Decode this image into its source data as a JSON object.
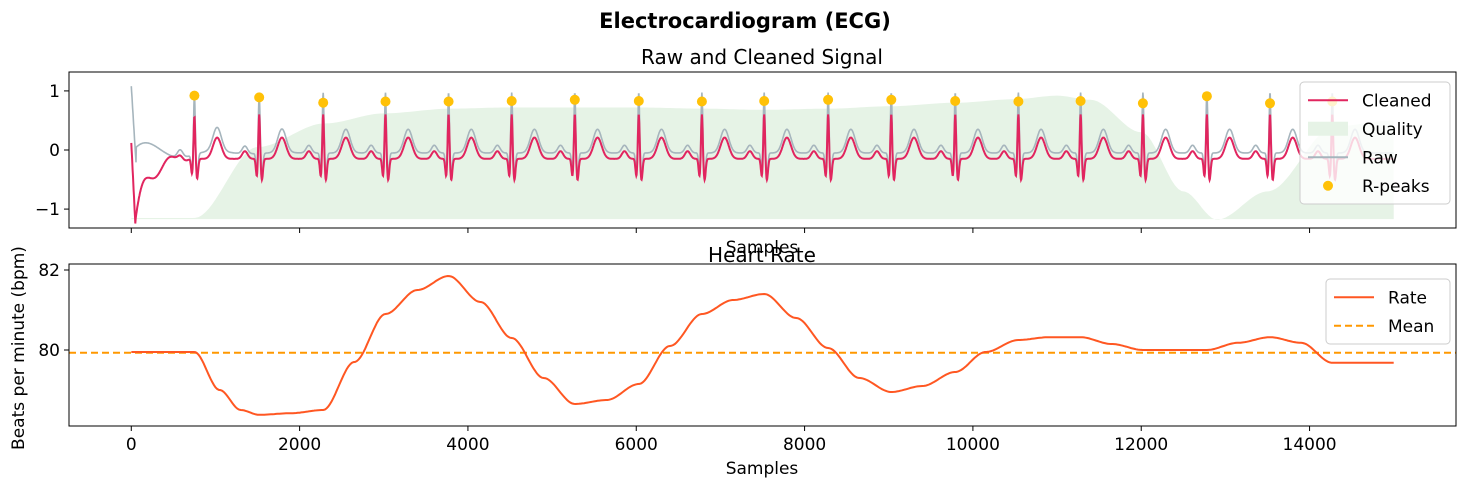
{
  "figure": {
    "suptitle": "Electrocardiogram (ECG)"
  },
  "colors": {
    "cleaned": "#E1255F",
    "quality": "#E6F3E6",
    "raw": "#A6B5BD",
    "rpeaks": "#FFC107",
    "rate": "#FF5722",
    "mean": "#FF9800"
  },
  "chart_data": [
    {
      "type": "line",
      "title": "Raw and Cleaned Signal",
      "xlabel": "Samples",
      "ylabel": "",
      "xlim": [
        -740,
        15740
      ],
      "ylim": [
        -1.32,
        1.32
      ],
      "yticks": [
        -1,
        0,
        1
      ],
      "ytick_labels": [
        "−1",
        "0",
        "1"
      ],
      "xticks": [
        0,
        2000,
        4000,
        6000,
        8000,
        10000,
        12000,
        14000
      ],
      "show_xtick_labels": false,
      "legend": {
        "placement": "top-right",
        "entries": [
          {
            "label": "Cleaned",
            "kind": "line",
            "color_key": "cleaned"
          },
          {
            "label": "Quality",
            "kind": "patch",
            "color_key": "quality"
          },
          {
            "label": "Raw",
            "kind": "line",
            "color_key": "raw"
          },
          {
            "label": "R-peaks",
            "kind": "dot",
            "color_key": "rpeaks"
          }
        ]
      },
      "baseline": -1.17,
      "rpeaks": {
        "name": "R-peaks",
        "x": [
          750,
          1520,
          2280,
          3020,
          3770,
          4520,
          5270,
          6030,
          6780,
          7520,
          8280,
          9030,
          9790,
          10540,
          11280,
          12020,
          12780,
          13530,
          14270
        ],
        "y": [
          0.92,
          0.89,
          0.8,
          0.82,
          0.82,
          0.83,
          0.85,
          0.83,
          0.82,
          0.83,
          0.85,
          0.85,
          0.83,
          0.82,
          0.83,
          0.79,
          0.91,
          0.79,
          0.82
        ]
      },
      "quality": {
        "name": "Quality",
        "x": [
          0,
          750,
          1500,
          2300,
          3000,
          3800,
          4500,
          5300,
          6000,
          6800,
          7500,
          8300,
          9000,
          9800,
          10500,
          11000,
          11400,
          12000,
          12500,
          12900,
          13500,
          14300,
          15000
        ],
        "y": [
          -1.15,
          -1.15,
          0.05,
          0.45,
          0.62,
          0.7,
          0.72,
          0.72,
          0.72,
          0.7,
          0.68,
          0.7,
          0.74,
          0.8,
          0.86,
          0.92,
          0.85,
          0.3,
          -0.7,
          -1.18,
          -0.7,
          0.4,
          0.5
        ]
      },
      "cleaned": {
        "name": "Cleaned",
        "start": 0,
        "end": 15000,
        "initial": 0.12,
        "r_amplitude": 0.78,
        "t_amplitude": 0.36
      },
      "raw": {
        "name": "Raw",
        "start": 0,
        "end": 15000,
        "initial": 1.08,
        "r_amplitude": 1.05,
        "offset": 0.12
      }
    },
    {
      "type": "line",
      "title": "Heart Rate",
      "xlabel": "Samples",
      "ylabel": "Beats per minute (bpm)",
      "xlim": [
        -740,
        15740
      ],
      "ylim": [
        78.1,
        82.15
      ],
      "yticks": [
        80,
        82
      ],
      "ytick_labels": [
        "80",
        "82"
      ],
      "xticks": [
        0,
        2000,
        4000,
        6000,
        8000,
        10000,
        12000,
        14000
      ],
      "xtick_labels": [
        "0",
        "2000",
        "4000",
        "6000",
        "8000",
        "10000",
        "12000",
        "14000"
      ],
      "legend": {
        "placement": "top-right",
        "entries": [
          {
            "label": "Rate",
            "kind": "line",
            "color_key": "rate"
          },
          {
            "label": "Mean",
            "kind": "dashed",
            "color_key": "mean"
          }
        ]
      },
      "series": [
        {
          "name": "Rate",
          "x": [
            0,
            750,
            1050,
            1300,
            1520,
            1900,
            2280,
            2650,
            3020,
            3400,
            3770,
            4150,
            4520,
            4900,
            5270,
            5650,
            6030,
            6400,
            6780,
            7150,
            7520,
            7900,
            8280,
            8650,
            9030,
            9400,
            9790,
            10150,
            10540,
            10900,
            11280,
            11650,
            12020,
            12400,
            12780,
            13150,
            13530,
            13900,
            14270,
            15000
          ],
          "y": [
            79.95,
            79.95,
            79.0,
            78.5,
            78.38,
            78.42,
            78.5,
            79.7,
            80.9,
            81.5,
            81.85,
            81.2,
            80.3,
            79.3,
            78.65,
            78.75,
            79.15,
            80.1,
            80.9,
            81.25,
            81.4,
            80.8,
            80.05,
            79.3,
            78.95,
            79.1,
            79.45,
            79.95,
            80.25,
            80.32,
            80.32,
            80.15,
            80.0,
            80.0,
            80.0,
            80.18,
            80.32,
            80.18,
            79.68,
            79.68
          ]
        }
      ],
      "mean": {
        "name": "Mean",
        "value": 79.93
      }
    }
  ]
}
